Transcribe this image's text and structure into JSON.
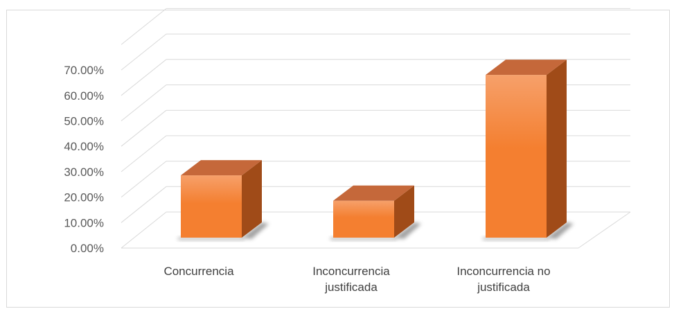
{
  "chart_data": {
    "type": "bar",
    "title": "",
    "xlabel": "",
    "ylabel": "",
    "categories": [
      [
        "Concurrencia"
      ],
      [
        "Inconcurrencia",
        "justificada"
      ],
      [
        "Inconcurrencia no",
        "justificada"
      ]
    ],
    "values": [
      24.5,
      14.5,
      64.0
    ],
    "ylim": [
      0,
      0.7
    ],
    "ytick_values": [
      0,
      0.1,
      0.2,
      0.3,
      0.4,
      0.5,
      0.6,
      0.7
    ],
    "yticks": [
      "0.00%",
      "10.00%",
      "20.00%",
      "30.00%",
      "40.00%",
      "50.00%",
      "60.00%",
      "70.00%"
    ],
    "grid": true,
    "style": "3d-column",
    "colors": {
      "bar_front": "#f47f30",
      "bar_front_light": "#f6a06a",
      "bar_top": "#c5683a",
      "bar_side": "#a04b18",
      "gridline": "#d9d9d9",
      "shadow": "#555555"
    }
  }
}
